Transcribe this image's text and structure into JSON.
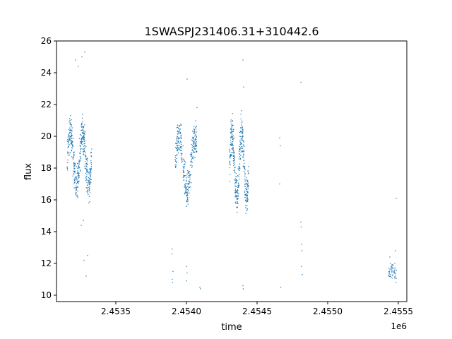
{
  "chart_data": {
    "type": "scatter",
    "title": "1SWASPJ231406.31+310442.6",
    "xlabel": "time",
    "ylabel": "flux",
    "x_offset_label": "1e6",
    "x_ticks": [
      2.4535,
      2.454,
      2.4545,
      2.455,
      2.4555
    ],
    "x_tick_labels": [
      "2.4535",
      "2.4540",
      "2.4545",
      "2.4550",
      "2.4555"
    ],
    "y_ticks": [
      10,
      12,
      14,
      16,
      18,
      20,
      22,
      24,
      26
    ],
    "y_tick_labels": [
      "10",
      "12",
      "14",
      "16",
      "18",
      "20",
      "22",
      "24",
      "26"
    ],
    "xlim": [
      2453080,
      2455560
    ],
    "ylim": [
      9.6,
      26.0
    ],
    "grid": false,
    "marker_color": "#1f77b4",
    "series": [
      {
        "segments": [
          {
            "t0": 2453155,
            "t1": 2453330,
            "pts": 420,
            "base": 18.6,
            "amp": 1.6,
            "per": 14,
            "noise": 0.7,
            "lo": 15.8,
            "hi": 21.6
          },
          {
            "t0": 2453920,
            "t1": 2454075,
            "pts": 320,
            "base": 18.2,
            "amp": 1.7,
            "per": 18,
            "noise": 0.7,
            "lo": 15.6,
            "hi": 23.0
          },
          {
            "t0": 2454305,
            "t1": 2454440,
            "pts": 380,
            "base": 18.2,
            "amp": 2.0,
            "per": 11,
            "noise": 0.8,
            "lo": 14.4,
            "hi": 21.8
          }
        ],
        "outliers": [
          [
            2453215,
            24.8
          ],
          [
            2453235,
            24.4
          ],
          [
            2453260,
            25.0
          ],
          [
            2453280,
            25.3
          ],
          [
            2453290,
            11.2
          ],
          [
            2453275,
            12.2
          ],
          [
            2453300,
            12.5
          ],
          [
            2453255,
            14.4
          ],
          [
            2453270,
            14.7
          ],
          [
            2453898,
            12.6
          ],
          [
            2453900,
            12.9
          ],
          [
            2453900,
            11.0
          ],
          [
            2453902,
            10.8
          ],
          [
            2453905,
            11.5
          ],
          [
            2454000,
            11.8
          ],
          [
            2454005,
            11.4
          ],
          [
            2454000,
            10.9
          ],
          [
            2454005,
            23.6
          ],
          [
            2454075,
            21.8
          ],
          [
            2454095,
            10.5
          ],
          [
            2454098,
            10.4
          ],
          [
            2454400,
            24.8
          ],
          [
            2454405,
            23.1
          ],
          [
            2454400,
            10.6
          ],
          [
            2454402,
            10.4
          ],
          [
            2454660,
            19.9
          ],
          [
            2454665,
            19.4
          ],
          [
            2454668,
            10.5
          ],
          [
            2454660,
            17.0
          ],
          [
            2454810,
            23.4
          ],
          [
            2454810,
            14.6
          ],
          [
            2454812,
            14.3
          ],
          [
            2454815,
            13.2
          ],
          [
            2454818,
            12.8
          ],
          [
            2454820,
            11.3
          ],
          [
            2454815,
            11.8
          ],
          [
            2455440,
            12.4
          ],
          [
            2455440,
            11.6
          ],
          [
            2455445,
            11.3
          ],
          [
            2455450,
            11.1
          ],
          [
            2455455,
            11.5
          ],
          [
            2455460,
            11.9
          ],
          [
            2455470,
            11.4
          ],
          [
            2455475,
            12.0
          ],
          [
            2455480,
            12.8
          ],
          [
            2455485,
            16.1
          ]
        ],
        "small_clusters": [
          {
            "t0": 2455430,
            "t1": 2455490,
            "pts": 40,
            "base": 11.4,
            "spread": 0.35
          }
        ]
      }
    ]
  }
}
